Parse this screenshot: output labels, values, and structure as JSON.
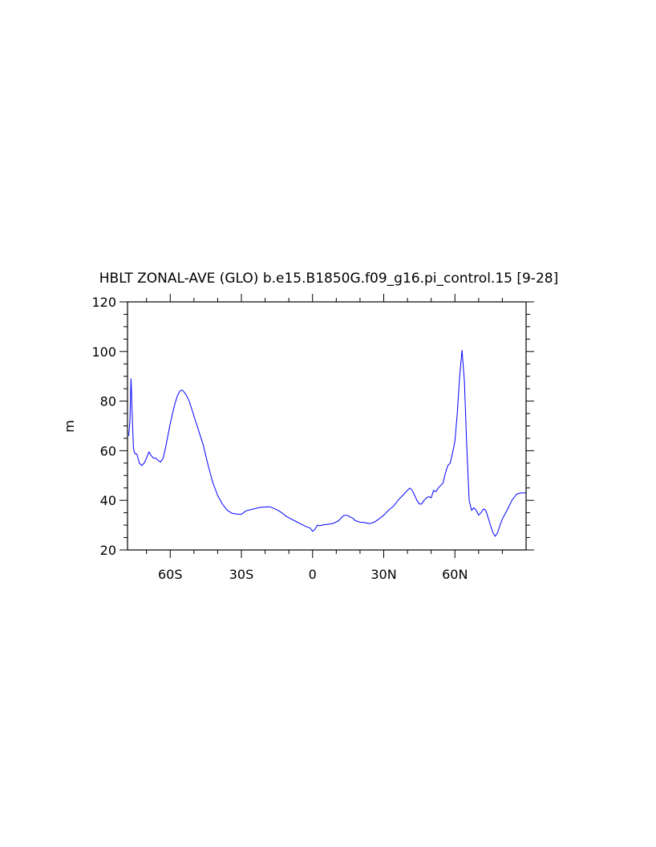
{
  "chart_data": {
    "type": "line",
    "title": "HBLT ZONAL-AVE (GLO) b.e15.B1850G.f09_g16.pi_control.15 [9-28]",
    "ylabel": "m",
    "xlabel": "",
    "xlim": [
      -78,
      90
    ],
    "ylim": [
      20,
      120
    ],
    "yticks": [
      20,
      40,
      60,
      80,
      100,
      120
    ],
    "yticklabels": [
      "20",
      "40",
      "60",
      "80",
      "100",
      "120"
    ],
    "xticks": [
      -60,
      -30,
      0,
      30,
      60
    ],
    "xticklabels": [
      "60S",
      "30S",
      "0",
      "30N",
      "60N"
    ],
    "grid": false,
    "series": [
      {
        "color": "#0000ff",
        "x": [
          -77.5,
          -77,
          -76.5,
          -76,
          -75.5,
          -75,
          -74,
          -73,
          -72,
          -71,
          -70,
          -69,
          -68,
          -67,
          -66,
          -65,
          -64,
          -63,
          -62,
          -61,
          -60,
          -59,
          -58,
          -57,
          -56,
          -55,
          -54,
          -53,
          -52,
          -51,
          -50,
          -49,
          -48,
          -46,
          -44,
          -42,
          -40,
          -38,
          -36,
          -34,
          -32,
          -30,
          -28,
          -25,
          -22,
          -18,
          -15,
          -13,
          -11,
          -9,
          -7,
          -5,
          -3,
          -1,
          0,
          1,
          2,
          3,
          5,
          7,
          9,
          11,
          13,
          14,
          15,
          16,
          17,
          18,
          20,
          22,
          24,
          26,
          28,
          30,
          32,
          34,
          36,
          38,
          40,
          41,
          42,
          43,
          44,
          45,
          46,
          47,
          48,
          49,
          50,
          51,
          52,
          53,
          54,
          55,
          56,
          57,
          58,
          59,
          60,
          61,
          62,
          63,
          64,
          65,
          66,
          67,
          68,
          69,
          70,
          71,
          72,
          73,
          74,
          75,
          76,
          77,
          78,
          79,
          80,
          82,
          84,
          86,
          88,
          90
        ],
        "y": [
          66,
          72,
          89,
          74,
          61,
          59,
          58.5,
          55,
          54,
          55,
          57,
          59.5,
          58,
          57,
          57,
          56,
          55.5,
          57,
          61,
          66,
          71,
          75,
          79,
          82,
          84,
          84.5,
          83.5,
          82,
          80,
          77,
          74,
          71,
          68,
          62,
          54,
          47,
          42,
          38.5,
          36,
          34.8,
          34.5,
          34.4,
          35.8,
          36.5,
          37.2,
          37.4,
          36.2,
          35,
          33.5,
          32.5,
          31.5,
          30.5,
          29.5,
          28.8,
          27.5,
          28.3,
          30,
          29.8,
          30.2,
          30.4,
          30.8,
          31.8,
          33.8,
          34,
          33.8,
          33.2,
          32.8,
          31.8,
          31.2,
          31,
          30.6,
          31.2,
          32.5,
          34,
          36,
          37.5,
          40,
          42,
          44,
          45,
          44,
          42,
          40,
          38.5,
          38.5,
          40,
          41,
          41.5,
          41,
          44,
          43.5,
          45,
          46,
          47,
          51,
          54,
          55,
          59,
          64,
          75,
          90,
          100.5,
          88,
          62,
          40,
          36,
          37,
          36,
          34,
          35,
          36.5,
          36,
          33,
          30,
          27,
          25.5,
          27,
          30,
          32.5,
          36,
          40,
          42.5,
          43,
          43
        ]
      }
    ]
  }
}
